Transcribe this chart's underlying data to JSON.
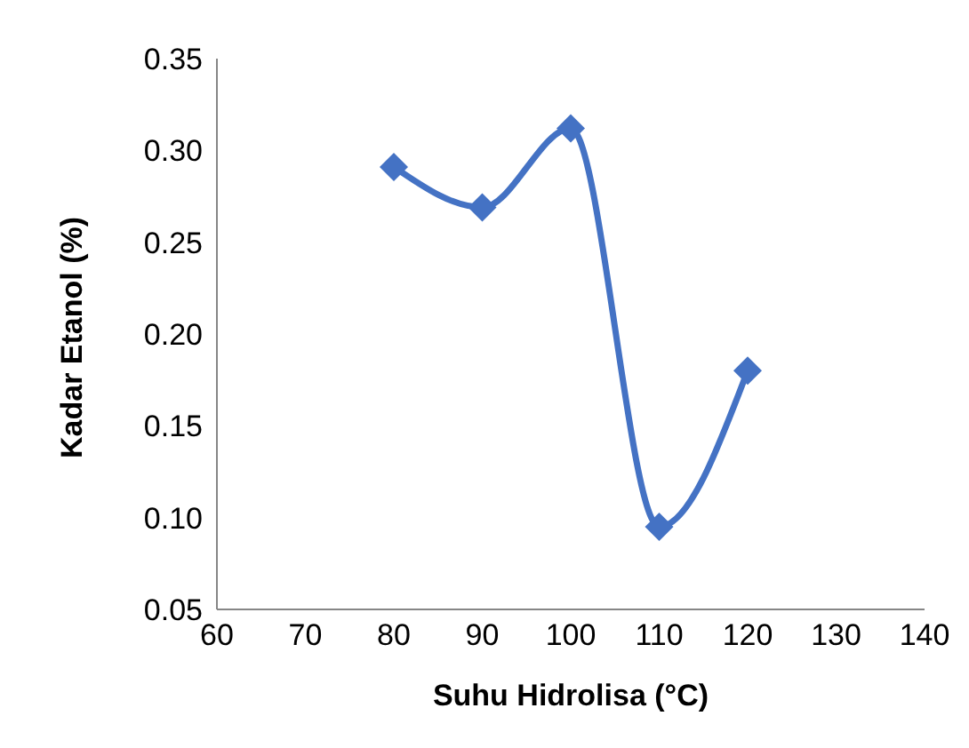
{
  "chart_data": {
    "type": "line",
    "xlabel": "Suhu Hidrolisa (°C)",
    "ylabel": "Kadar Etanol (%)",
    "x": [
      80,
      90,
      100,
      110,
      120
    ],
    "series": [
      {
        "color": "#4472c4",
        "values": [
          0.291,
          0.269,
          0.312,
          0.095,
          0.18
        ]
      }
    ],
    "xlim": [
      60,
      140
    ],
    "xticks": [
      60,
      70,
      80,
      90,
      100,
      110,
      120,
      130,
      140
    ],
    "ylim": [
      0.05,
      0.35
    ],
    "yticks": [
      {
        "value": 0.05,
        "label": "0.05"
      },
      {
        "value": 0.1,
        "label": "0.10"
      },
      {
        "value": 0.15,
        "label": "0.15"
      },
      {
        "value": 0.2,
        "label": "0.20"
      },
      {
        "value": 0.25,
        "label": "0.25"
      },
      {
        "value": 0.3,
        "label": "0.30"
      },
      {
        "value": 0.35,
        "label": "0.35"
      }
    ],
    "grid": false,
    "legend": false,
    "marker": "diamond",
    "line_style": "solid"
  }
}
